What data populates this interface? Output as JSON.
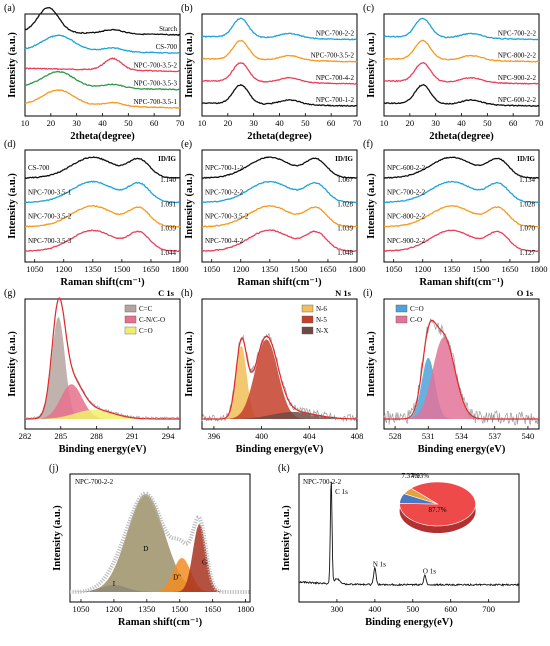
{
  "chart_data": [
    {
      "id": "a",
      "panel_label": "(a)",
      "type": "line",
      "xlabel": "2theta(degree)",
      "ylabel": "Intensity (a.u.)",
      "xlim": [
        10,
        70
      ],
      "xticks": [
        10,
        20,
        30,
        40,
        50,
        60,
        70
      ],
      "peaks": [
        [
          23,
          6,
          1
        ]
      ],
      "series": [
        {
          "name": "Starch",
          "color": "#111111",
          "peaks": [
            [
              19,
              4,
              1.6
            ]
          ]
        },
        {
          "name": "CS-700",
          "color": "#1fa3d8"
        },
        {
          "name": "NPC-700-3.5-2",
          "color": "#e8405a",
          "peaks": [
            [
              44,
              3,
              0.5
            ]
          ]
        },
        {
          "name": "NPC-700-3.5-3",
          "color": "#2e9a45"
        },
        {
          "name": "NPC-700-3.5-1",
          "color": "#f59a1e"
        }
      ]
    },
    {
      "id": "b",
      "panel_label": "(b)",
      "type": "line",
      "xlabel": "2theta(degree)",
      "ylabel": "Intensity (a.u.)",
      "xlim": [
        10,
        70
      ],
      "xticks": [
        10,
        20,
        30,
        40,
        50,
        60,
        70
      ],
      "peaks": [
        [
          25,
          3,
          1
        ]
      ],
      "series": [
        {
          "name": "NPC-700-2-2",
          "color": "#1fa3d8"
        },
        {
          "name": "NPC-700-3.5-2",
          "color": "#f59a1e"
        },
        {
          "name": "NPC-700-4-2",
          "color": "#e8405a"
        },
        {
          "name": "NPC-700-1-2",
          "color": "#111111"
        }
      ]
    },
    {
      "id": "c",
      "panel_label": "(c)",
      "type": "line",
      "xlabel": "2theta(degree)",
      "ylabel": "Intensity (a.u.)",
      "xlim": [
        10,
        70
      ],
      "xticks": [
        10,
        20,
        30,
        40,
        50,
        60,
        70
      ],
      "peaks": [
        [
          25,
          3,
          1
        ]
      ],
      "series": [
        {
          "name": "NPC-700-2-2",
          "color": "#1fa3d8"
        },
        {
          "name": "NPC-800-2-2",
          "color": "#f59a1e"
        },
        {
          "name": "NPC-900-2-2",
          "color": "#e8405a"
        },
        {
          "name": "NPC-600-2-2",
          "color": "#111111"
        }
      ]
    },
    {
      "id": "d",
      "panel_label": "(d)",
      "type": "line",
      "xlabel": "Raman shift(cm⁻¹)",
      "ylabel": "Intensity (a.u.)",
      "ratio_header": "ID/IG",
      "xlim": [
        1000,
        1800
      ],
      "xticks": [
        1050,
        1200,
        1350,
        1500,
        1650,
        1800
      ],
      "peaks": [
        [
          1350,
          110,
          1
        ],
        [
          1590,
          55,
          0.85
        ]
      ],
      "series": [
        {
          "name": "CS-700",
          "ratio": "1.140",
          "color": "#111111"
        },
        {
          "name": "NPC-700-3.5-1",
          "ratio": "1.091",
          "color": "#1fa3d8"
        },
        {
          "name": "NPC-700-3.5-2",
          "ratio": "1.039",
          "color": "#f59a1e"
        },
        {
          "name": "NPC-700-3.5-3",
          "ratio": "1.044",
          "color": "#e8405a"
        }
      ]
    },
    {
      "id": "e",
      "panel_label": "(e)",
      "type": "line",
      "xlabel": "Raman shift(cm⁻¹)",
      "ylabel": "Intensity (a.u.)",
      "ratio_header": "ID/IG",
      "xlim": [
        1000,
        1800
      ],
      "xticks": [
        1050,
        1200,
        1350,
        1500,
        1650,
        1800
      ],
      "peaks": [
        [
          1350,
          110,
          1
        ],
        [
          1590,
          55,
          0.85
        ]
      ],
      "series": [
        {
          "name": "NPC-700-1-2",
          "ratio": "1.067",
          "color": "#111111"
        },
        {
          "name": "NPC-700-2-2",
          "ratio": "1.028",
          "color": "#1fa3d8"
        },
        {
          "name": "NPC-700-3.5-2",
          "ratio": "1.039",
          "color": "#f59a1e"
        },
        {
          "name": "NPC-700-4-2",
          "ratio": "1.048",
          "color": "#e8405a"
        }
      ]
    },
    {
      "id": "f",
      "panel_label": "(f)",
      "type": "line",
      "xlabel": "Raman shift(cm⁻¹)",
      "ylabel": "Intensity (a.u.)",
      "ratio_header": "ID/IG",
      "xlim": [
        1000,
        1800
      ],
      "xticks": [
        1050,
        1200,
        1350,
        1500,
        1650,
        1800
      ],
      "peaks": [
        [
          1350,
          110,
          1
        ],
        [
          1590,
          55,
          0.85
        ]
      ],
      "series": [
        {
          "name": "NPC-600-2-2",
          "ratio": "1.134",
          "color": "#111111"
        },
        {
          "name": "NPC-700-2-2",
          "ratio": "1.028",
          "color": "#1fa3d8"
        },
        {
          "name": "NPC-800-2-2",
          "ratio": "1.070",
          "color": "#f59a1e"
        },
        {
          "name": "NPC-900-2-2",
          "ratio": "1.127",
          "color": "#e8405a"
        }
      ]
    },
    {
      "id": "g",
      "panel_label": "(g)",
      "type": "area",
      "title": "C 1s",
      "xlabel": "Binding energy(eV)",
      "ylabel": "Intensity (a.u.)",
      "xlim": [
        282,
        295
      ],
      "xticks": [
        282,
        285,
        288,
        291,
        294
      ],
      "components": [
        {
          "name": "C=C",
          "color": "#b5a59e",
          "center": 284.8,
          "width": 0.55,
          "height": 1.0
        },
        {
          "name": "C-N/C-O",
          "color": "#e6708d",
          "center": 285.9,
          "width": 0.9,
          "height": 0.34
        },
        {
          "name": "C=O",
          "color": "#eef06a",
          "center": 287.8,
          "width": 1.6,
          "height": 0.09
        }
      ]
    },
    {
      "id": "h",
      "panel_label": "(h)",
      "type": "area",
      "title": "N 1s",
      "xlabel": "Binding energy(eV)",
      "ylabel": "Intensity (a.u.)",
      "xlim": [
        395,
        408
      ],
      "xticks": [
        396,
        400,
        404,
        408
      ],
      "components": [
        {
          "name": "N-6",
          "color": "#f2be58",
          "center": 398.3,
          "width": 0.45,
          "height": 0.72
        },
        {
          "name": "N-5",
          "color": "#c4402c",
          "center": 400.4,
          "width": 0.95,
          "height": 0.78
        },
        {
          "name": "N-X",
          "color": "#6e4a44",
          "center": 402.7,
          "width": 1.8,
          "height": 0.07
        }
      ]
    },
    {
      "id": "i",
      "panel_label": "(i)",
      "type": "area",
      "title": "O 1s",
      "xlabel": "Binding energy(eV)",
      "ylabel": "Intensity (a.u.)",
      "xlim": [
        527,
        541
      ],
      "xticks": [
        528,
        531,
        534,
        537,
        540
      ],
      "components": [
        {
          "name": "C=O",
          "color": "#4ea3d8",
          "center": 531.0,
          "width": 0.6,
          "height": 0.6
        },
        {
          "name": "C-O",
          "color": "#e3739a",
          "center": 532.4,
          "width": 1.0,
          "height": 0.8
        }
      ]
    },
    {
      "id": "j",
      "panel_label": "(j)",
      "type": "area",
      "title": "NPC-700-2-2",
      "xlabel": "Raman shift(cm⁻¹)",
      "ylabel": "Intensity (a.u.)",
      "xlim": [
        1000,
        1820
      ],
      "xticks": [
        1050,
        1200,
        1350,
        1500,
        1650,
        1800
      ],
      "components": [
        {
          "name": "I",
          "color": "#3f63b6",
          "center": 1200,
          "width": 60,
          "height": 0.07
        },
        {
          "name": "D",
          "color": "#9c9168",
          "center": 1345,
          "width": 85,
          "height": 0.98
        },
        {
          "name": "D''",
          "color": "#f28d22",
          "center": 1510,
          "width": 40,
          "height": 0.34
        },
        {
          "name": "G",
          "color": "#a8321f",
          "center": 1590,
          "width": 30,
          "height": 0.68
        }
      ]
    },
    {
      "id": "k",
      "panel_label": "(k)",
      "type": "line",
      "title": "NPC-700-2-2",
      "xlabel": "Binding energy(eV)",
      "ylabel": "Intensity (a.u.)",
      "xlim": [
        200,
        780
      ],
      "xticks": [
        300,
        400,
        500,
        600,
        700
      ],
      "series": [
        {
          "name": "survey",
          "color": "#111111"
        }
      ],
      "peak_labels": [
        {
          "name": "C 1s",
          "x": 284.8,
          "height": 1.0
        },
        {
          "name": "N 1s",
          "x": 400,
          "height": 0.17
        },
        {
          "name": "O 1s",
          "x": 532,
          "height": 0.1
        }
      ],
      "pie": {
        "type": "pie",
        "slices": [
          {
            "label": "87.7%",
            "value": 87.7,
            "color": "#ef4a4a"
          },
          {
            "label": "7.37%",
            "value": 7.37,
            "color": "#4a78c0"
          },
          {
            "label": "4.93%",
            "value": 4.93,
            "color": "#e6a23c"
          }
        ]
      }
    }
  ]
}
